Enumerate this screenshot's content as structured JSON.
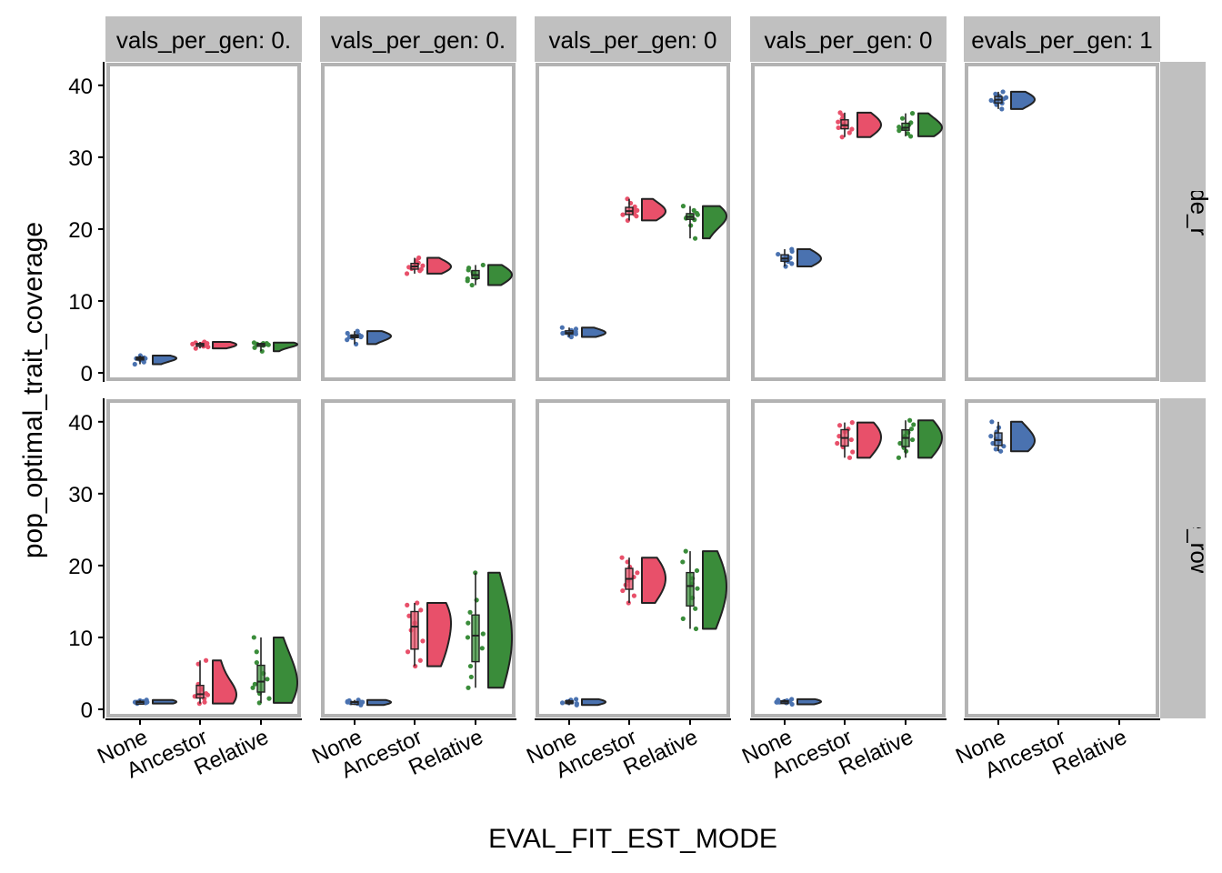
{
  "chart_data": {
    "type": "raincloud",
    "xlabel": "EVAL_FIT_EST_MODE",
    "ylabel": "pop_optimal_trait_coverage",
    "ylim": [
      0,
      42
    ],
    "yticks": [
      0,
      10,
      20,
      30,
      40
    ],
    "categories": [
      "None",
      "Ancestor",
      "Relative"
    ],
    "column_strips": [
      "vals_per_gen: 0.",
      "vals_per_gen: 0.",
      "vals_per_gen: 0",
      "vals_per_gen: 0",
      "evals_per_gen: 1"
    ],
    "row_strips": [
      "eval_mode_row: cohort",
      "eval_mode_row: down-sam"
    ],
    "colors": {
      "None": "#4a72b0",
      "Ancestor": "#e8506a",
      "Relative": "#3a8c3a",
      "strip": "#c0c0c0",
      "panel_border": "#b3b3b3"
    },
    "panels": [
      {
        "row": 0,
        "col": 0,
        "groups": [
          {
            "category": "None",
            "values": [
              1.2,
              1.5,
              1.8,
              2.0,
              2.0,
              2.1,
              2.2,
              2.3,
              1.9,
              2.4
            ]
          },
          {
            "category": "Ancestor",
            "values": [
              3.4,
              3.6,
              3.8,
              3.9,
              4.0,
              4.0,
              4.1,
              4.2,
              3.7,
              4.3
            ]
          },
          {
            "category": "Relative",
            "values": [
              3.0,
              3.5,
              3.8,
              3.9,
              4.0,
              4.0,
              4.1,
              4.2,
              3.9,
              4.1
            ]
          }
        ]
      },
      {
        "row": 0,
        "col": 1,
        "groups": [
          {
            "category": "None",
            "values": [
              4.0,
              4.6,
              4.9,
              5.0,
              5.1,
              5.2,
              5.3,
              5.5,
              5.8,
              5.0
            ]
          },
          {
            "category": "Ancestor",
            "values": [
              13.8,
              14.2,
              14.5,
              14.7,
              14.9,
              15.0,
              15.3,
              15.6,
              16.0,
              14.4
            ]
          },
          {
            "category": "Relative",
            "values": [
              12.2,
              12.8,
              13.2,
              13.5,
              13.7,
              14.0,
              14.3,
              14.6,
              15.0,
              13.1
            ]
          }
        ]
      },
      {
        "row": 0,
        "col": 2,
        "groups": [
          {
            "category": "None",
            "values": [
              5.0,
              5.2,
              5.4,
              5.5,
              5.6,
              5.7,
              5.9,
              6.1,
              6.3,
              5.5
            ]
          },
          {
            "category": "Ancestor",
            "values": [
              21.2,
              21.8,
              22.1,
              22.4,
              22.6,
              22.8,
              23.1,
              23.6,
              24.2,
              22.0
            ]
          },
          {
            "category": "Relative",
            "values": [
              18.7,
              20.5,
              21.3,
              21.6,
              21.8,
              22.0,
              22.2,
              22.6,
              23.2,
              21.5
            ]
          }
        ]
      },
      {
        "row": 0,
        "col": 3,
        "groups": [
          {
            "category": "None",
            "values": [
              14.8,
              15.2,
              15.5,
              15.8,
              16.0,
              16.2,
              16.5,
              16.9,
              17.2,
              15.6
            ]
          },
          {
            "category": "Ancestor",
            "values": [
              32.8,
              33.4,
              33.9,
              34.3,
              34.6,
              34.9,
              35.3,
              35.8,
              36.2,
              34.1
            ]
          },
          {
            "category": "Relative",
            "values": [
              32.9,
              33.3,
              33.7,
              34.0,
              34.2,
              34.5,
              34.8,
              35.4,
              36.1,
              33.9
            ]
          }
        ]
      },
      {
        "row": 0,
        "col": 4,
        "groups": [
          {
            "category": "None",
            "values": [
              36.7,
              37.3,
              37.7,
              37.9,
              38.1,
              38.3,
              38.5,
              38.8,
              39.1,
              37.5
            ]
          }
        ]
      },
      {
        "row": 1,
        "col": 0,
        "groups": [
          {
            "category": "None",
            "values": [
              0.8,
              0.9,
              1.0,
              1.0,
              1.0,
              1.1,
              1.1,
              1.2,
              1.3,
              1.0
            ]
          },
          {
            "category": "Ancestor",
            "values": [
              0.8,
              1.0,
              1.5,
              1.8,
              2.0,
              2.2,
              2.8,
              3.5,
              6.3,
              6.8
            ]
          },
          {
            "category": "Relative",
            "values": [
              0.9,
              1.5,
              2.2,
              3.0,
              3.5,
              4.2,
              5.0,
              6.5,
              8.0,
              10.0
            ]
          }
        ]
      },
      {
        "row": 1,
        "col": 1,
        "groups": [
          {
            "category": "None",
            "values": [
              0.6,
              0.8,
              0.9,
              1.0,
              1.0,
              1.0,
              1.1,
              1.2,
              1.3,
              0.9
            ]
          },
          {
            "category": "Ancestor",
            "values": [
              6.0,
              6.8,
              8.0,
              9.5,
              11.0,
              12.0,
              13.0,
              13.8,
              14.5,
              14.8
            ]
          },
          {
            "category": "Relative",
            "values": [
              3.0,
              4.5,
              6.0,
              8.5,
              10.0,
              10.5,
              12.0,
              13.5,
              15.2,
              19.0
            ]
          }
        ]
      },
      {
        "row": 1,
        "col": 2,
        "groups": [
          {
            "category": "None",
            "values": [
              0.6,
              0.8,
              0.9,
              1.0,
              1.0,
              1.1,
              1.2,
              1.3,
              1.4,
              0.9
            ]
          },
          {
            "category": "Ancestor",
            "values": [
              14.8,
              15.8,
              16.5,
              17.3,
              17.9,
              18.4,
              19.0,
              19.8,
              20.5,
              21.1
            ]
          },
          {
            "category": "Relative",
            "values": [
              11.2,
              12.6,
              14.0,
              15.5,
              16.8,
              17.5,
              18.2,
              19.3,
              20.5,
              22.0
            ]
          }
        ]
      },
      {
        "row": 1,
        "col": 3,
        "groups": [
          {
            "category": "None",
            "values": [
              0.7,
              0.9,
              1.0,
              1.0,
              1.1,
              1.1,
              1.2,
              1.3,
              1.4,
              1.0
            ]
          },
          {
            "category": "Ancestor",
            "values": [
              35.0,
              35.8,
              36.5,
              37.0,
              37.5,
              38.0,
              38.6,
              39.0,
              39.5,
              39.9
            ]
          },
          {
            "category": "Relative",
            "values": [
              35.0,
              35.9,
              36.4,
              37.0,
              37.5,
              38.0,
              38.5,
              39.0,
              39.6,
              40.2
            ]
          }
        ]
      },
      {
        "row": 1,
        "col": 4,
        "groups": [
          {
            "category": "None",
            "values": [
              35.9,
              36.2,
              36.6,
              37.0,
              37.3,
              37.6,
              38.0,
              38.6,
              39.2,
              40.0
            ]
          }
        ]
      }
    ]
  }
}
